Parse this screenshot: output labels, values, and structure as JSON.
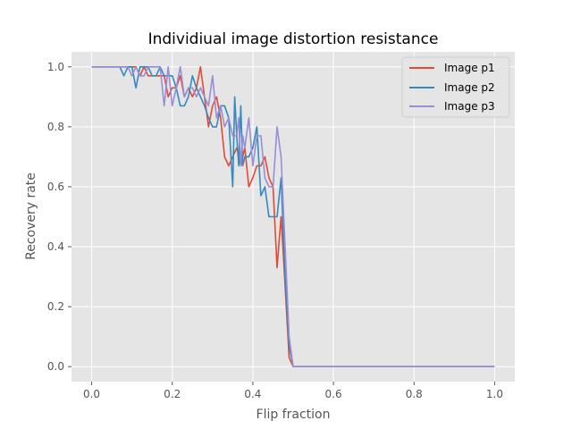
{
  "chart_data": {
    "type": "line",
    "title": "Individiual image distortion resistance",
    "xlabel": "Flip fraction",
    "ylabel": "Recovery rate",
    "xlim": [
      -0.05,
      1.05
    ],
    "ylim": [
      -0.05,
      1.05
    ],
    "xticks": [
      0.0,
      0.2,
      0.4,
      0.6,
      0.8,
      1.0
    ],
    "yticks": [
      0.0,
      0.2,
      0.4,
      0.6,
      0.8,
      1.0
    ],
    "xtick_labels": [
      "0.0",
      "0.2",
      "0.4",
      "0.6",
      "0.8",
      "1.0"
    ],
    "ytick_labels": [
      "0.0",
      "0.2",
      "0.4",
      "0.6",
      "0.8",
      "1.0"
    ],
    "grid": true,
    "legend_position": "top-right",
    "background_color": "#e5e5e5",
    "series": [
      {
        "name": "Image p1",
        "color": "#e24a33",
        "x": [
          0.0,
          0.08,
          0.1,
          0.11,
          0.12,
          0.13,
          0.14,
          0.15,
          0.16,
          0.17,
          0.18,
          0.19,
          0.2,
          0.21,
          0.22,
          0.23,
          0.24,
          0.25,
          0.26,
          0.27,
          0.28,
          0.29,
          0.3,
          0.31,
          0.32,
          0.33,
          0.34,
          0.35,
          0.36,
          0.37,
          0.38,
          0.39,
          0.4,
          0.41,
          0.42,
          0.43,
          0.44,
          0.45,
          0.46,
          0.47,
          0.48,
          0.49,
          0.5,
          0.51,
          1.0
        ],
        "y": [
          1.0,
          1.0,
          1.0,
          1.0,
          0.97,
          1.0,
          0.97,
          0.97,
          0.97,
          0.97,
          0.97,
          0.9,
          0.93,
          0.93,
          0.97,
          0.9,
          0.93,
          0.9,
          0.93,
          1.0,
          0.9,
          0.8,
          0.87,
          0.9,
          0.83,
          0.7,
          0.67,
          0.7,
          0.73,
          0.67,
          0.73,
          0.6,
          0.63,
          0.67,
          0.67,
          0.7,
          0.63,
          0.6,
          0.33,
          0.5,
          0.27,
          0.03,
          0.0,
          0.0,
          0.0
        ]
      },
      {
        "name": "Image p2",
        "color": "#348abd",
        "x": [
          0.0,
          0.07,
          0.08,
          0.09,
          0.1,
          0.11,
          0.12,
          0.13,
          0.14,
          0.15,
          0.16,
          0.17,
          0.18,
          0.19,
          0.2,
          0.21,
          0.22,
          0.23,
          0.24,
          0.25,
          0.26,
          0.27,
          0.28,
          0.29,
          0.3,
          0.31,
          0.32,
          0.33,
          0.34,
          0.35,
          0.355,
          0.36,
          0.365,
          0.37,
          0.375,
          0.38,
          0.39,
          0.4,
          0.41,
          0.42,
          0.43,
          0.44,
          0.45,
          0.46,
          0.47,
          0.48,
          0.49,
          0.5,
          0.51,
          1.0
        ],
        "y": [
          1.0,
          1.0,
          0.97,
          1.0,
          1.0,
          0.93,
          1.0,
          1.0,
          1.0,
          0.97,
          0.97,
          1.0,
          0.97,
          0.97,
          0.97,
          0.93,
          0.87,
          0.87,
          0.9,
          0.97,
          0.93,
          0.9,
          0.87,
          0.83,
          0.8,
          0.8,
          0.87,
          0.87,
          0.83,
          0.6,
          0.9,
          0.77,
          0.67,
          0.87,
          0.67,
          0.7,
          0.7,
          0.73,
          0.8,
          0.57,
          0.6,
          0.5,
          0.5,
          0.5,
          0.63,
          0.3,
          0.07,
          0.0,
          0.0,
          0.0
        ]
      },
      {
        "name": "Image p3",
        "color": "#988ed5",
        "x": [
          0.0,
          0.07,
          0.08,
          0.09,
          0.1,
          0.11,
          0.12,
          0.13,
          0.14,
          0.15,
          0.16,
          0.17,
          0.18,
          0.19,
          0.2,
          0.21,
          0.22,
          0.23,
          0.24,
          0.25,
          0.26,
          0.27,
          0.28,
          0.29,
          0.3,
          0.31,
          0.32,
          0.33,
          0.34,
          0.35,
          0.355,
          0.36,
          0.365,
          0.37,
          0.375,
          0.38,
          0.39,
          0.4,
          0.41,
          0.42,
          0.43,
          0.44,
          0.45,
          0.46,
          0.47,
          0.48,
          0.49,
          0.5,
          0.51,
          1.0
        ],
        "y": [
          1.0,
          1.0,
          1.0,
          1.0,
          0.97,
          1.0,
          0.97,
          0.97,
          1.0,
          1.0,
          1.0,
          1.0,
          0.87,
          1.0,
          0.87,
          0.93,
          1.0,
          0.9,
          0.93,
          0.93,
          0.9,
          0.93,
          0.9,
          0.87,
          0.97,
          0.83,
          0.87,
          0.8,
          0.83,
          0.77,
          0.77,
          0.77,
          0.83,
          0.67,
          0.77,
          0.73,
          0.83,
          0.67,
          0.77,
          0.77,
          0.63,
          0.6,
          0.6,
          0.8,
          0.7,
          0.4,
          0.1,
          0.0,
          0.0,
          0.0
        ]
      }
    ]
  }
}
